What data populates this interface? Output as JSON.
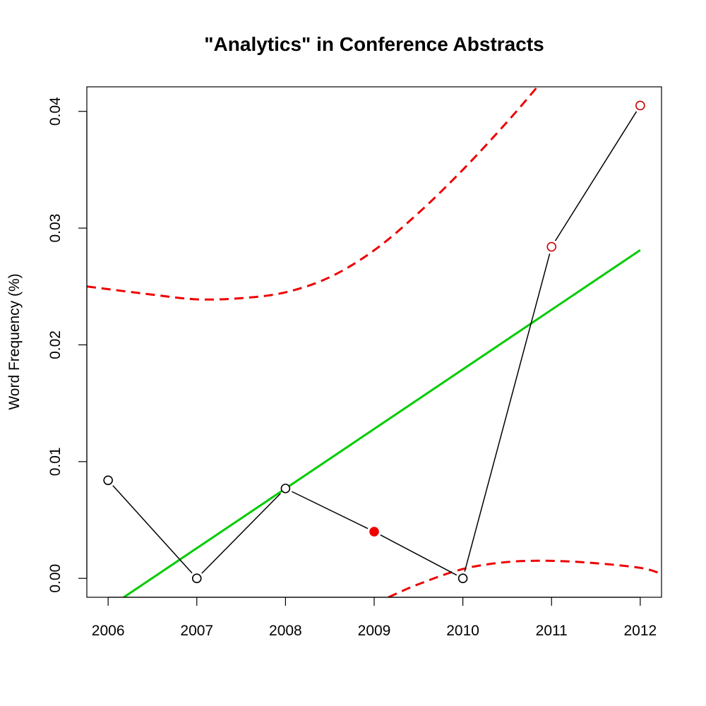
{
  "chart_data": {
    "type": "line",
    "title": "\"Analytics\" in Conference Abstracts",
    "xlabel": "",
    "ylabel": "Word Frequency (%)",
    "xlim": [
      2005.76,
      2012.24
    ],
    "ylim": [
      -0.00162,
      0.0421
    ],
    "x_ticks": [
      "2006",
      "2007",
      "2008",
      "2009",
      "2010",
      "2011",
      "2012"
    ],
    "y_ticks": [
      "0.00",
      "0.01",
      "0.02",
      "0.03",
      "0.04"
    ],
    "grid": false,
    "legend": "none",
    "series": [
      {
        "x": [
          2006,
          2007,
          2008,
          2009,
          2010,
          2011,
          2012
        ],
        "y": [
          0.0084,
          0.0,
          0.0077,
          0.004,
          0.0,
          0.0284,
          0.0405
        ],
        "point_styles": [
          "open",
          "open",
          "open",
          "filled",
          "open",
          "open",
          "open"
        ],
        "point_colors": [
          "#000000",
          "#000000",
          "#000000",
          "#ee0000",
          "#000000",
          "#cc0000",
          "#cc0000"
        ],
        "color": "#000000"
      }
    ],
    "trend_line": {
      "color": "#00cc00",
      "intercept_at_2006": -0.00252,
      "slope": 0.005106
    },
    "bands": {
      "color": "#ee0000",
      "style": "dashed",
      "upper": {
        "x": [
          2005.76,
          2006.5,
          2007.0,
          2007.5,
          2008.0,
          2008.5,
          2009.0,
          2009.5,
          2010.0,
          2010.5,
          2010.84
        ],
        "y": [
          0.025,
          0.0243,
          0.0239,
          0.024,
          0.0245,
          0.0258,
          0.0281,
          0.0313,
          0.035,
          0.0391,
          0.0421
        ]
      },
      "lower": {
        "x": [
          2009.16,
          2009.5,
          2010.0,
          2010.5,
          2011.0,
          2011.5,
          2012.0,
          2012.2
        ],
        "y": [
          -0.00162,
          -0.0005,
          0.0008,
          0.0014,
          0.0015,
          0.0013,
          0.0009,
          0.0005
        ]
      }
    }
  }
}
